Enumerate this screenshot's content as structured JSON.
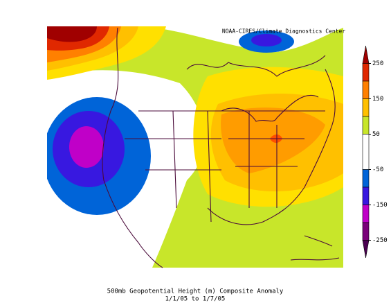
{
  "header": {
    "credit": "NOAA-CIRES/Climate Diagnostics Center"
  },
  "colorbar": {
    "range": [
      -300,
      300
    ],
    "ticks": [
      250,
      150,
      50,
      -50,
      -150,
      -250
    ],
    "bands": [
      {
        "from": 250,
        "to": 300,
        "color": "#a00000"
      },
      {
        "from": 200,
        "to": 250,
        "color": "#e02800"
      },
      {
        "from": 150,
        "to": 200,
        "color": "#ff8000"
      },
      {
        "from": 100,
        "to": 150,
        "color": "#ffc000"
      },
      {
        "from": 50,
        "to": 100,
        "color": "#c8e62a"
      },
      {
        "from": -50,
        "to": 50,
        "color": "#ffffff"
      },
      {
        "from": -100,
        "to": -50,
        "color": "#0064d8"
      },
      {
        "from": -150,
        "to": -100,
        "color": "#3818e0"
      },
      {
        "from": -200,
        "to": -150,
        "color": "#c000c8"
      },
      {
        "from": -250,
        "to": -200,
        "color": "#7a007a"
      },
      {
        "from": -300,
        "to": -250,
        "color": "#4a0050"
      }
    ]
  },
  "caption": {
    "title": "500mb Geopotential Height (m) Composite Anomaly",
    "dates": "1/1/05  to 1/7/05"
  }
}
